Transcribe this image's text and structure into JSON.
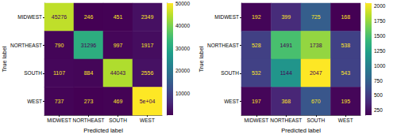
{
  "chart_data": [
    {
      "type": "heatmap",
      "x_categories": [
        "MIDWEST",
        "NORTHEAST",
        "SOUTH",
        "WEST"
      ],
      "y_categories": [
        "MIDWEST",
        "NORTHEAST",
        "SOUTH",
        "WEST"
      ],
      "xlabel": "Predicted label",
      "ylabel": "True label",
      "cells": [
        [
          45276,
          246,
          451,
          2349
        ],
        [
          790,
          31296,
          997,
          1917
        ],
        [
          1107,
          884,
          44043,
          2556
        ],
        [
          737,
          273,
          469,
          50000
        ]
      ],
      "value_labels": [
        [
          "45276",
          "246",
          "451",
          "2349"
        ],
        [
          "790",
          "31296",
          "997",
          "1917"
        ],
        [
          "1107",
          "884",
          "44043",
          "2556"
        ],
        [
          "737",
          "273",
          "469",
          "5e+04"
        ]
      ],
      "data_labels": true,
      "color_range": [
        246,
        50000
      ],
      "color_ticks": [
        10000,
        20000,
        30000,
        40000,
        50000
      ]
    },
    {
      "type": "heatmap",
      "x_categories": [
        "MIDWEST",
        "NORTHEAST",
        "SOUTH",
        "WEST"
      ],
      "y_categories": [
        "MIDWEST",
        "NORTHEAST",
        "SOUTH",
        "WEST"
      ],
      "xlabel": "Predicted label",
      "ylabel": "True label",
      "cells": [
        [
          192,
          399,
          725,
          168
        ],
        [
          528,
          1491,
          1738,
          538
        ],
        [
          532,
          1144,
          2047,
          543
        ],
        [
          197,
          368,
          670,
          195
        ]
      ],
      "data_labels": true,
      "color_range": [
        168,
        2047
      ],
      "color_ticks": [
        250,
        500,
        750,
        1000,
        1250,
        1500,
        1750,
        2000
      ]
    }
  ]
}
